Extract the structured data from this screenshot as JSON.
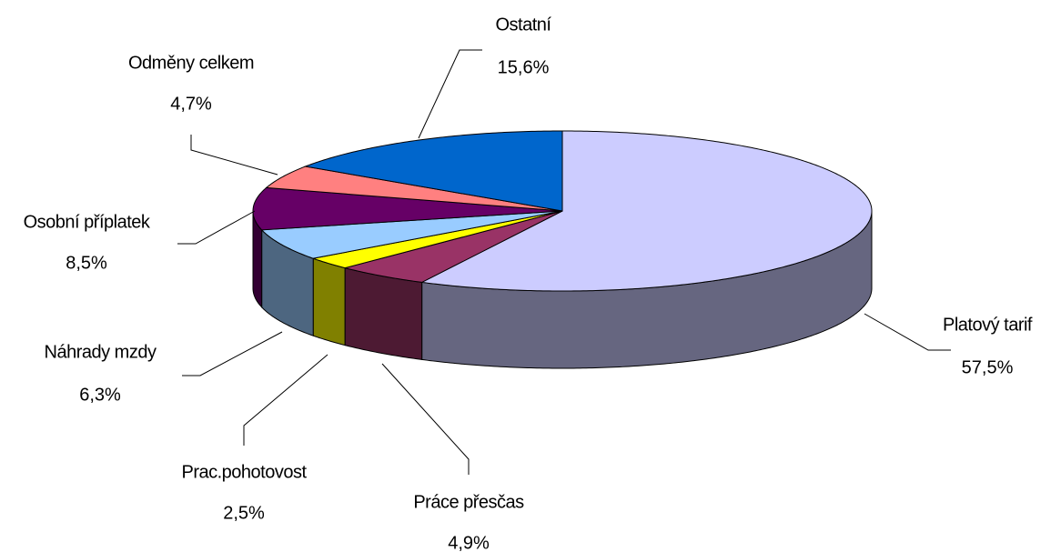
{
  "chart_data": {
    "type": "pie",
    "categories": [
      "Platový tarif",
      "Práce přesčas",
      "Prac.pohotovost",
      "Náhrady mzdy",
      "Osobní příplatek",
      "Odměny celkem",
      "Ostatní"
    ],
    "values": [
      57.5,
      4.9,
      2.5,
      6.3,
      8.5,
      4.7,
      15.6
    ],
    "value_labels": [
      "57,5%",
      "4,9%",
      "2,5%",
      "6,3%",
      "8,5%",
      "4,7%",
      "15,6%"
    ],
    "colors": [
      "#CCCCFF",
      "#993366",
      "#FFFF00",
      "#99CCFF",
      "#660066",
      "#FF8080",
      "#0066CC"
    ]
  }
}
